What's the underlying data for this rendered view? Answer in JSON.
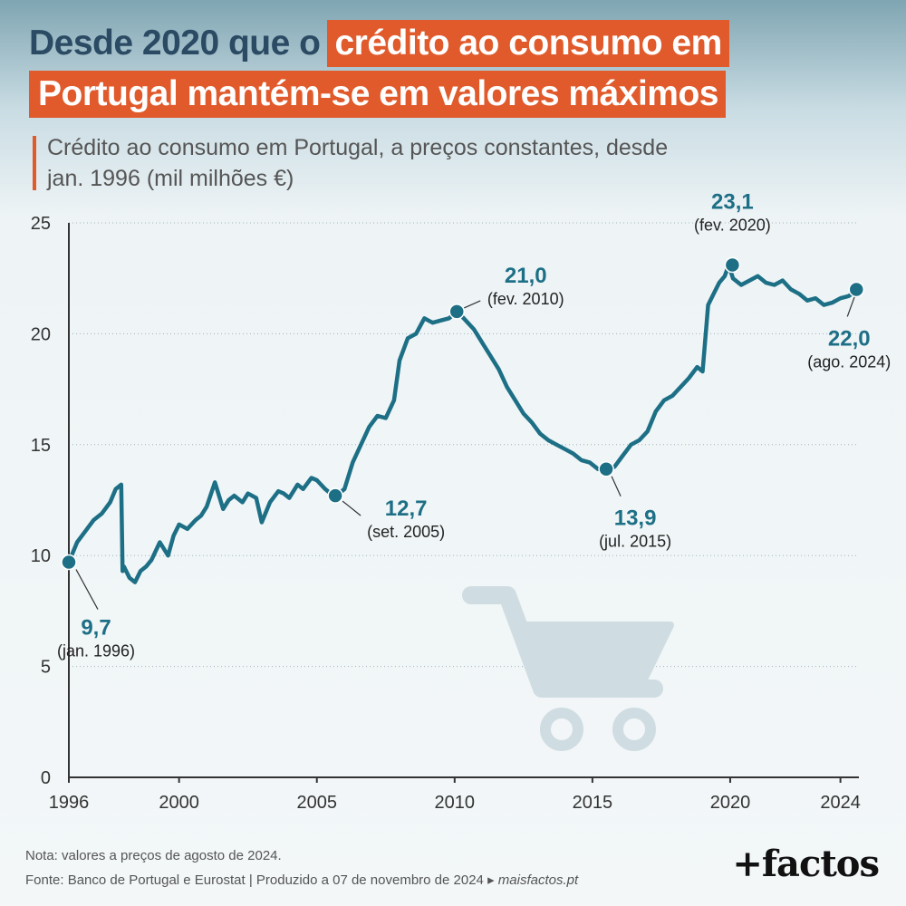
{
  "title": {
    "line1_plain": "Desde 2020 que o",
    "line1_highlight": "crédito ao consumo em",
    "line2_highlight": "Portugal mantém-se em valores máximos"
  },
  "subtitle": "Crédito ao consumo em Portugal, a preços constantes, desde jan. 1996 (mil milhões €)",
  "footer": {
    "note": "Nota: valores a preços de agosto de 2024.",
    "source": "Fonte: Banco de Portugal e Eurostat | Produzido a 07 de novembro de 2024 ▸",
    "site": "maisfactos.pt",
    "logo": "+factos"
  },
  "colors": {
    "line": "#1d6f86",
    "highlight": "#e05a2b",
    "title_text": "#2b4a63",
    "cart_icon": "#cfdde3"
  },
  "icons": [
    "shopping-cart-icon"
  ],
  "chart_data": {
    "type": "line",
    "title": "Crédito ao consumo em Portugal, a preços constantes, desde jan. 1996 (mil milhões €)",
    "xlabel": "",
    "ylabel": "",
    "xlim": [
      1996,
      2024.67
    ],
    "ylim": [
      0,
      25
    ],
    "x_ticks": [
      1996,
      2000,
      2005,
      2010,
      2015,
      2020,
      2024
    ],
    "y_ticks": [
      0,
      5,
      10,
      15,
      20,
      25
    ],
    "grid": "horizontal dotted",
    "series": [
      {
        "x": [
          1996.0,
          1996.3,
          1996.6,
          1996.9,
          1997.2,
          1997.5,
          1997.7,
          1997.9,
          1997.95,
          1998.0,
          1998.2,
          1998.4,
          1998.6,
          1998.8,
          1999.0,
          1999.3,
          1999.6,
          1999.8,
          2000.0,
          2000.3,
          2000.6,
          2000.8,
          2001.0,
          2001.3,
          2001.6,
          2001.8,
          2002.0,
          2002.3,
          2002.5,
          2002.8,
          2003.0,
          2003.3,
          2003.6,
          2003.8,
          2004.0,
          2004.3,
          2004.5,
          2004.8,
          2005.0,
          2005.3,
          2005.5,
          2005.7,
          2006.0,
          2006.3,
          2006.6,
          2006.9,
          2007.2,
          2007.5,
          2007.8,
          2008.0,
          2008.3,
          2008.6,
          2008.9,
          2009.2,
          2009.5,
          2009.8,
          2010.1,
          2010.4,
          2010.7,
          2011.0,
          2011.3,
          2011.6,
          2011.9,
          2012.2,
          2012.5,
          2012.8,
          2013.1,
          2013.4,
          2013.7,
          2014.0,
          2014.3,
          2014.6,
          2014.9,
          2015.2,
          2015.5,
          2015.8,
          2016.1,
          2016.4,
          2016.7,
          2017.0,
          2017.3,
          2017.6,
          2017.9,
          2018.2,
          2018.5,
          2018.8,
          2019.0,
          2019.2,
          2019.4,
          2019.6,
          2019.8,
          2019.95,
          2020.1,
          2020.4,
          2020.7,
          2021.0,
          2021.3,
          2021.6,
          2021.9,
          2022.2,
          2022.5,
          2022.8,
          2023.1,
          2023.4,
          2023.7,
          2024.0,
          2024.3,
          2024.67
        ],
        "y": [
          9.7,
          10.6,
          11.1,
          11.6,
          11.9,
          12.4,
          13.0,
          13.2,
          9.3,
          9.5,
          9.0,
          8.8,
          9.3,
          9.5,
          9.8,
          10.6,
          10.0,
          10.9,
          11.4,
          11.2,
          11.6,
          11.8,
          12.2,
          13.3,
          12.1,
          12.5,
          12.7,
          12.4,
          12.8,
          12.6,
          11.5,
          12.4,
          12.9,
          12.8,
          12.6,
          13.2,
          13.0,
          13.5,
          13.4,
          13.0,
          12.8,
          12.7,
          13.0,
          14.2,
          15.0,
          15.8,
          16.3,
          16.2,
          17.0,
          18.8,
          19.8,
          20.0,
          20.7,
          20.5,
          20.6,
          20.7,
          21.0,
          20.6,
          20.2,
          19.6,
          19.0,
          18.4,
          17.6,
          17.0,
          16.4,
          16.0,
          15.5,
          15.2,
          15.0,
          14.8,
          14.6,
          14.3,
          14.2,
          13.9,
          13.9,
          14.0,
          14.5,
          15.0,
          15.2,
          15.6,
          16.5,
          17.0,
          17.2,
          17.6,
          18.0,
          18.5,
          18.3,
          21.3,
          21.8,
          22.3,
          22.6,
          23.1,
          22.5,
          22.2,
          22.4,
          22.6,
          22.3,
          22.2,
          22.4,
          22.0,
          21.8,
          21.5,
          21.6,
          21.3,
          21.4,
          21.6,
          21.7,
          22.0
        ]
      }
    ],
    "annotations": [
      {
        "x": 1996.0,
        "y": 9.7,
        "value": "9,7",
        "date": "(jan. 1996)"
      },
      {
        "x": 2005.67,
        "y": 12.7,
        "value": "12,7",
        "date": "(set. 2005)"
      },
      {
        "x": 2010.08,
        "y": 21.0,
        "value": "21,0",
        "date": "(fev. 2010)"
      },
      {
        "x": 2015.5,
        "y": 13.9,
        "value": "13,9",
        "date": "(jul. 2015)"
      },
      {
        "x": 2020.08,
        "y": 23.1,
        "value": "23,1",
        "date": "(fev. 2020)"
      },
      {
        "x": 2024.58,
        "y": 22.0,
        "value": "22,0",
        "date": "(ago. 2024)"
      }
    ]
  }
}
